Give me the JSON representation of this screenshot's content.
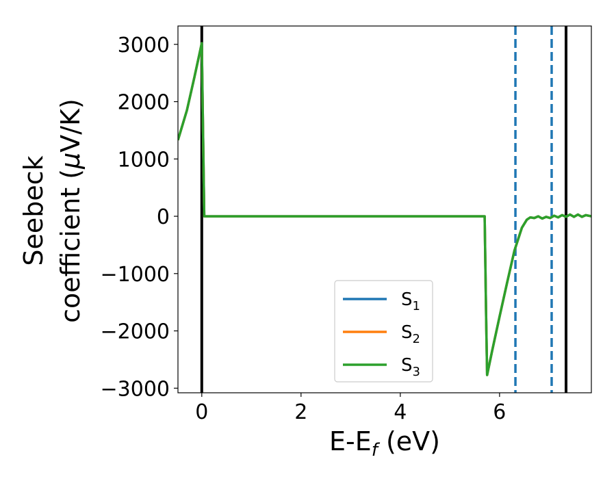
{
  "chart_data": {
    "type": "line",
    "title": "",
    "xlabel_main": "E-E",
    "xlabel_sub": "f",
    "xlabel_unit": " (eV)",
    "ylabel_line1": "Seebeck",
    "ylabel_line2_prefix": "coefficient  (",
    "ylabel_mu": "μ",
    "ylabel_line2_suffix": "V/K)",
    "xlim": [
      -0.48,
      7.85
    ],
    "ylim": [
      -3080,
      3320
    ],
    "xticks": [
      0,
      2,
      4,
      6
    ],
    "xtick_labels": [
      "0",
      "2",
      "4",
      "6"
    ],
    "yticks": [
      3000,
      2000,
      1000,
      0,
      -1000,
      -2000,
      -3000
    ],
    "ytick_labels": [
      "3000",
      "2000",
      "1000",
      "0",
      "−1000",
      "−2000",
      "−3000"
    ],
    "grid": false,
    "legend_position": "lower-center",
    "series": [
      {
        "name": "S",
        "sub": "1",
        "color": "#1f77b4",
        "x": [
          -0.48,
          -0.3,
          -0.15,
          0.0,
          0.05,
          0.5,
          1.5,
          3.0,
          4.5,
          5.7,
          5.73,
          5.75,
          5.85,
          6.0,
          6.15,
          6.3,
          6.45,
          6.55,
          6.62,
          6.7,
          6.78,
          6.86,
          6.94,
          7.02,
          7.1,
          7.18,
          7.26,
          7.34,
          7.42,
          7.5,
          7.58,
          7.66,
          7.74,
          7.85
        ],
        "y": [
          1330,
          1850,
          2420,
          3020,
          0,
          0,
          0,
          0,
          0,
          0,
          -1800,
          -2770,
          -2350,
          -1750,
          -1170,
          -600,
          -200,
          -60,
          -20,
          -30,
          0,
          -40,
          -10,
          -30,
          10,
          -20,
          20,
          -10,
          30,
          -10,
          30,
          -10,
          20,
          0
        ]
      },
      {
        "name": "S",
        "sub": "2",
        "color": "#ff7f0e",
        "x": [
          -0.48,
          -0.3,
          -0.15,
          0.0,
          0.05,
          0.5,
          1.5,
          3.0,
          4.5,
          5.7,
          5.73,
          5.75,
          5.85,
          6.0,
          6.15,
          6.3,
          6.45,
          6.55,
          6.62,
          6.7,
          6.78,
          6.86,
          6.94,
          7.02,
          7.1,
          7.18,
          7.26,
          7.34,
          7.42,
          7.5,
          7.58,
          7.66,
          7.74,
          7.85
        ],
        "y": [
          1330,
          1850,
          2420,
          3020,
          0,
          0,
          0,
          0,
          0,
          0,
          -1800,
          -2770,
          -2350,
          -1750,
          -1170,
          -600,
          -200,
          -60,
          -20,
          -30,
          0,
          -40,
          -10,
          -30,
          10,
          -20,
          20,
          -10,
          30,
          -10,
          30,
          -10,
          20,
          0
        ]
      },
      {
        "name": "S",
        "sub": "3",
        "color": "#2ca02c",
        "x": [
          -0.48,
          -0.3,
          -0.15,
          0.0,
          0.05,
          0.5,
          1.5,
          3.0,
          4.5,
          5.7,
          5.73,
          5.75,
          5.85,
          6.0,
          6.15,
          6.3,
          6.45,
          6.55,
          6.62,
          6.7,
          6.78,
          6.86,
          6.94,
          7.02,
          7.1,
          7.18,
          7.26,
          7.34,
          7.42,
          7.5,
          7.58,
          7.66,
          7.74,
          7.85
        ],
        "y": [
          1330,
          1850,
          2420,
          3020,
          0,
          0,
          0,
          0,
          0,
          0,
          -1800,
          -2770,
          -2350,
          -1750,
          -1170,
          -600,
          -200,
          -60,
          -20,
          -30,
          0,
          -40,
          -10,
          -30,
          10,
          -20,
          20,
          -10,
          30,
          -10,
          30,
          -10,
          20,
          0
        ]
      }
    ],
    "vertical_lines": [
      {
        "x": 0.0,
        "style": "solid",
        "color": "#000000"
      },
      {
        "x": 6.32,
        "style": "dashed",
        "color": "#1f77b4"
      },
      {
        "x": 7.05,
        "style": "dashed",
        "color": "#1f77b4"
      },
      {
        "x": 7.34,
        "style": "solid",
        "color": "#000000"
      }
    ]
  }
}
